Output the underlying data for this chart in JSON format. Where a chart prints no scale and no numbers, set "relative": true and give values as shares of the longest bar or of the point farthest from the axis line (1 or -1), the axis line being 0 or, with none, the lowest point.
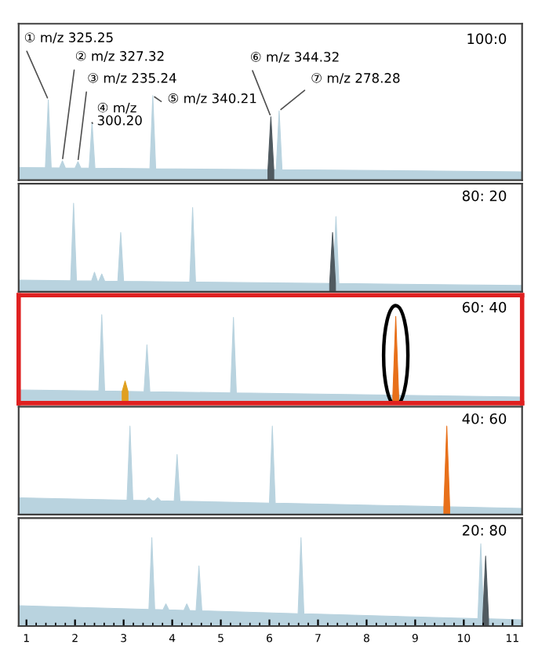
{
  "chart_data": [
    {
      "type": "area",
      "title": "100:0",
      "relative": true,
      "xlim": [
        0.84,
        11.2
      ],
      "tick_labels": false,
      "series": [
        {
          "color": "#b9d3df",
          "x": [
            0.84,
            1.39,
            1.45,
            1.51,
            1.68,
            1.74,
            1.8,
            2.0,
            2.06,
            2.12,
            2.29,
            2.35,
            2.41,
            3.54,
            3.6,
            3.66,
            6.14,
            6.2,
            6.26,
            11.2
          ],
          "values": [
            0.15,
            0.147,
            0.95,
            0.147,
            0.146,
            0.23,
            0.146,
            0.144,
            0.22,
            0.144,
            0.143,
            0.68,
            0.143,
            0.137,
            1,
            0.137,
            0.124,
            0.82,
            0.124,
            0.1
          ]
        },
        {
          "color": "#505a60",
          "x": [
            5.97,
            6.03,
            6.09
          ],
          "values": [
            0.125,
            0.75,
            0.125
          ]
        }
      ],
      "annotations": [
        {
          "text": "① m/z 325.25",
          "x": 1.45,
          "y": 0.95
        },
        {
          "text": "② m/z 327.32",
          "x": 1.74,
          "y": 0.23
        },
        {
          "text": "③ m/z 235.24",
          "x": 2.06,
          "y": 0.22
        },
        {
          "text": "④ m/z\n300.20",
          "x": 2.35,
          "y": 0.68
        },
        {
          "text": "⑤ m/z 340.21",
          "x": 3.6,
          "y": 1
        },
        {
          "text": "⑥ m/z 344.32",
          "x": 6.03,
          "y": 0.75
        },
        {
          "text": "⑦ m/z 278.28",
          "x": 6.2,
          "y": 0.82
        }
      ]
    },
    {
      "type": "area",
      "title": "80: 20",
      "relative": true,
      "xlim": [
        0.84,
        11.2
      ],
      "tick_labels": false,
      "series": [
        {
          "color": "#b9d3df",
          "x": [
            0.84,
            1.91,
            1.97,
            2.03,
            2.34,
            2.4,
            2.46,
            2.49,
            2.55,
            2.61,
            2.88,
            2.94,
            3.0,
            4.36,
            4.42,
            4.48,
            7.31,
            7.37,
            7.43,
            11.2
          ],
          "values": [
            0.13,
            0.123,
            1,
            0.123,
            0.121,
            0.22,
            0.121,
            0.12,
            0.2,
            0.12,
            0.118,
            0.67,
            0.118,
            0.109,
            0.95,
            0.109,
            0.092,
            0.85,
            0.092,
            0.07
          ]
        },
        {
          "color": "#505a60",
          "x": [
            7.24,
            7.3,
            7.36
          ],
          "values": [
            0.093,
            0.67,
            0.093
          ]
        }
      ]
    },
    {
      "type": "area",
      "title": "60: 40",
      "relative": true,
      "xlim": [
        0.84,
        11.2
      ],
      "tick_labels": false,
      "series": [
        {
          "color": "#b9d3df",
          "x": [
            0.84,
            2.49,
            2.55,
            2.61,
            3.42,
            3.48,
            3.54,
            5.2,
            5.26,
            5.32,
            11.2
          ],
          "values": [
            0.15,
            0.137,
            1,
            0.137,
            0.13,
            0.66,
            0.13,
            0.116,
            0.97,
            0.116,
            0.07
          ]
        },
        {
          "color": "#e0a020",
          "x": [
            2.97,
            3.03,
            3.09
          ],
          "values": [
            0.133,
            0.25,
            0.133
          ]
        },
        {
          "color": "#e8701a",
          "x": [
            8.54,
            8.6,
            8.66
          ],
          "values": [
            0.09,
            0.98,
            0.09
          ]
        }
      ]
    },
    {
      "type": "area",
      "title": "40: 60",
      "relative": true,
      "xlim": [
        0.84,
        11.2
      ],
      "tick_labels": false,
      "series": [
        {
          "color": "#b9d3df",
          "x": [
            0.84,
            3.07,
            3.13,
            3.19,
            3.46,
            3.52,
            3.58,
            3.64,
            3.7,
            3.76,
            4.04,
            4.1,
            4.16,
            6.0,
            6.06,
            6.12,
            11.2
          ],
          "values": [
            0.19,
            0.163,
            1,
            0.163,
            0.159,
            0.19,
            0.159,
            0.157,
            0.19,
            0.157,
            0.152,
            0.68,
            0.152,
            0.13,
            1,
            0.13,
            0.07
          ]
        },
        {
          "color": "#e8701a",
          "x": [
            9.59,
            9.65,
            9.71
          ],
          "values": [
            0.088,
            1,
            0.088
          ]
        }
      ]
    },
    {
      "type": "area",
      "title": "20: 80",
      "relative": true,
      "xlim": [
        0.84,
        11.2
      ],
      "xticks": [
        1,
        2,
        3,
        4,
        5,
        6,
        7,
        8,
        9,
        10,
        11
      ],
      "tick_labels": "x",
      "series": [
        {
          "color": "#b9d3df",
          "x": [
            0.84,
            3.52,
            3.58,
            3.64,
            3.81,
            3.87,
            3.93,
            4.24,
            4.3,
            4.36,
            4.49,
            4.55,
            4.61,
            6.59,
            6.65,
            6.71,
            10.29,
            10.35,
            10.41,
            11.2
          ],
          "values": [
            0.23,
            0.188,
            1,
            0.188,
            0.183,
            0.25,
            0.183,
            0.177,
            0.25,
            0.177,
            0.173,
            0.68,
            0.173,
            0.14,
            1,
            0.14,
            0.083,
            0.93,
            0.083,
            0.07
          ]
        },
        {
          "color": "#505a60",
          "x": [
            10.39,
            10.45,
            10.51
          ],
          "values": [
            0.082,
            0.79,
            0.082
          ]
        }
      ]
    }
  ]
}
